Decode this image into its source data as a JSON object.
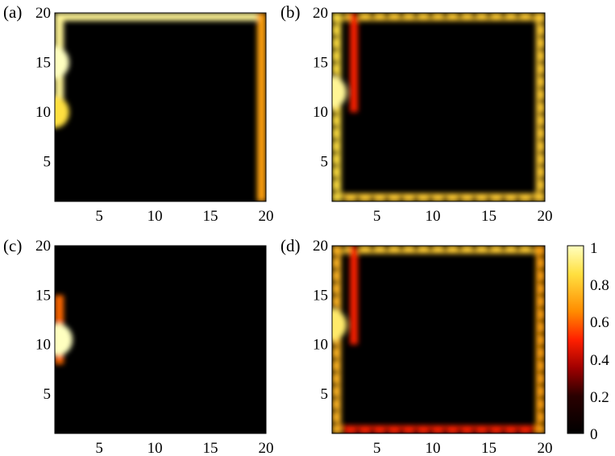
{
  "chart_data": [
    {
      "type": "heatmap",
      "panel_label": "(a)",
      "x_ticks": [
        "5",
        "10",
        "15",
        "20"
      ],
      "y_ticks": [
        "5",
        "10",
        "15",
        "20"
      ],
      "xlim": [
        1,
        20
      ],
      "ylim": [
        1,
        20
      ],
      "pattern": "Bright band along the top edge (y = 20, x = 1 to 19) and down the right edge (x = 20); left edge bright from y = 10 to 20, brightest (~1) near x = 1, y = 12–18; rest of the grid near 0",
      "segments": [
        {
          "edge": "top",
          "from": 1,
          "to": 19.5,
          "value": 0.95
        },
        {
          "edge": "right",
          "from": 1,
          "to": 20,
          "value": 0.7
        },
        {
          "edge": "left",
          "from": 9,
          "to": 20,
          "value": 0.95
        }
      ],
      "hotspots": [
        {
          "x": 1,
          "y": 15,
          "value": 1.0
        },
        {
          "x": 1,
          "y": 10,
          "value": 0.85
        }
      ]
    },
    {
      "type": "heatmap",
      "panel_label": "(b)",
      "x_ticks": [
        "5",
        "10",
        "15",
        "20"
      ],
      "y_ticks": [
        "5",
        "10",
        "15",
        "20"
      ],
      "xlim": [
        1,
        20
      ],
      "ylim": [
        1,
        20
      ],
      "pattern": "Bright band around all four edges with periodic dark spots along each edge; inner band along column x = 3 from y = 10 to 20; interior near 0",
      "segments": [
        {
          "edge": "top",
          "from": 1,
          "to": 20,
          "value": 0.8
        },
        {
          "edge": "bottom",
          "from": 1,
          "to": 20,
          "value": 0.8
        },
        {
          "edge": "left",
          "from": 1,
          "to": 20,
          "value": 0.85
        },
        {
          "edge": "right",
          "from": 1,
          "to": 20,
          "value": 0.8
        },
        {
          "edge": "inner_col_x3",
          "from": 10,
          "to": 20,
          "value": 0.5
        }
      ],
      "hotspots": [
        {
          "x": 1,
          "y": 12,
          "value": 0.95
        }
      ]
    },
    {
      "type": "heatmap",
      "panel_label": "(c)",
      "x_ticks": [
        "5",
        "10",
        "15",
        "20"
      ],
      "y_ticks": [
        "5",
        "10",
        "15",
        "20"
      ],
      "xlim": [
        1,
        20
      ],
      "ylim": [
        1,
        20
      ],
      "pattern": "Single bright spot at the left edge near x = 1, y = 10–11 (value ~1) fading along the left edge from y = 8 to 15; everything else 0",
      "segments": [
        {
          "edge": "left",
          "from": 8,
          "to": 15,
          "value": 0.6
        }
      ],
      "hotspots": [
        {
          "x": 1.3,
          "y": 10.5,
          "value": 1.0
        }
      ]
    },
    {
      "type": "heatmap",
      "panel_label": "(d)",
      "x_ticks": [
        "5",
        "10",
        "15",
        "20"
      ],
      "y_ticks": [
        "5",
        "10",
        "15",
        "20"
      ],
      "xlim": [
        1,
        20
      ],
      "ylim": [
        1,
        20
      ],
      "pattern": "Similar to (b): bright band around all edges with periodic dark spots, inner band along column x = 3 from y = 10 to 20; bottom edge dimmer",
      "segments": [
        {
          "edge": "top",
          "from": 1,
          "to": 20,
          "value": 0.8
        },
        {
          "edge": "bottom",
          "from": 1,
          "to": 20,
          "value": 0.5
        },
        {
          "edge": "left",
          "from": 1,
          "to": 20,
          "value": 0.75
        },
        {
          "edge": "right",
          "from": 1,
          "to": 20,
          "value": 0.7
        },
        {
          "edge": "inner_col_x3",
          "from": 10,
          "to": 20,
          "value": 0.5
        }
      ],
      "hotspots": [
        {
          "x": 1,
          "y": 12,
          "value": 0.9
        }
      ]
    }
  ],
  "colorbar": {
    "colormap": "hot",
    "range": [
      0,
      1
    ],
    "ticks": [
      "0",
      "0.2",
      "0.4",
      "0.6",
      "0.8",
      "1"
    ],
    "colors": [
      "#000000",
      "#a00000",
      "#ff2000",
      "#ff8c00",
      "#ffe040",
      "#ffffc0"
    ]
  }
}
